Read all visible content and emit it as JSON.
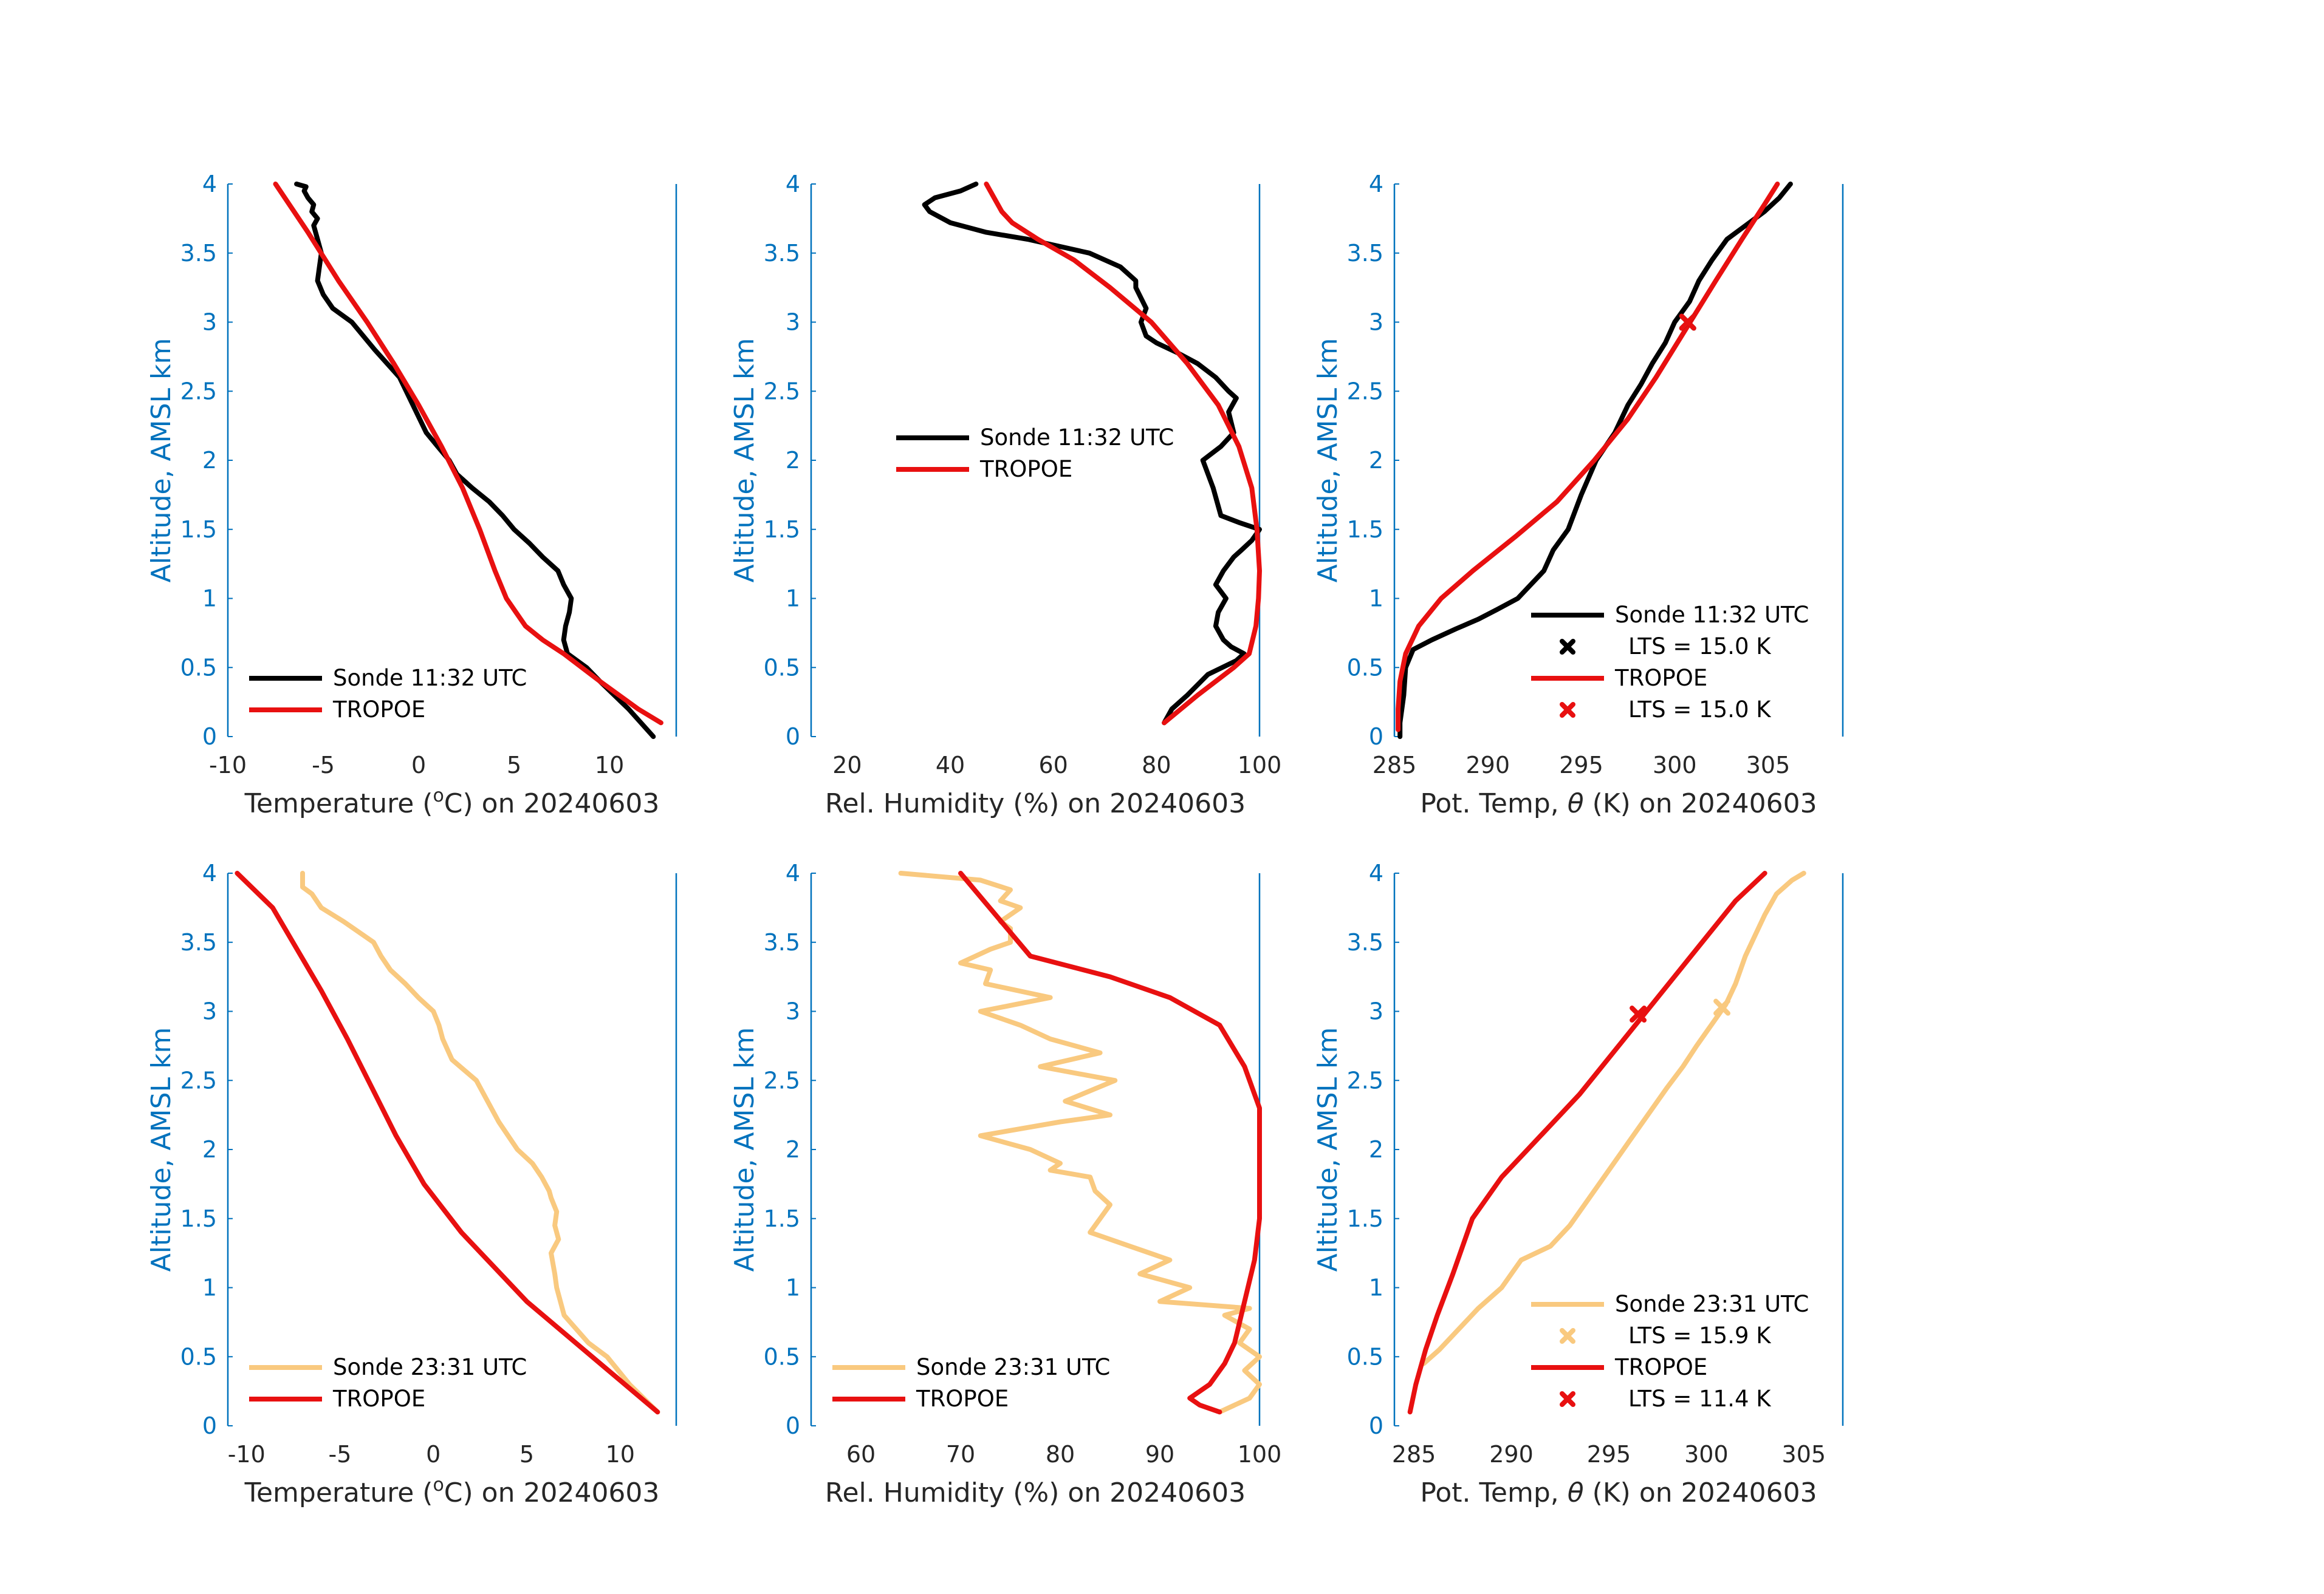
{
  "colors": {
    "sonde_am": "#000000",
    "sonde_pm": "#F9C97F",
    "tropoe": "#E81010",
    "axis": "#0072BD",
    "text": "#262626"
  },
  "chart_data": [
    {
      "type": "line",
      "id": "temp-am",
      "xlabel": "Temperature (",
      "xlabel_sup": "o",
      "xlabel_after": "C) on 20240603",
      "ylabel": "Altitude, AMSL km",
      "xlim": [
        -10,
        13.5
      ],
      "ylim": [
        0,
        4
      ],
      "xticks": [
        -10,
        -5,
        0,
        5,
        10
      ],
      "xtick_labels": [
        "-10",
        "-5",
        "0",
        "5",
        "10"
      ],
      "yticks": [
        0,
        0.5,
        1,
        1.5,
        2,
        2.5,
        3,
        3.5,
        4
      ],
      "ytick_labels": [
        "0",
        "0.5",
        "1",
        "1.5",
        "2",
        "2.5",
        "3",
        "3.5",
        "4"
      ],
      "legend": {
        "loc": "lower-left"
      },
      "series": [
        {
          "name": "Sonde 11:32 UTC",
          "color": "sonde_am",
          "x": [
            12.3,
            11.0,
            9.5,
            8.8,
            7.8,
            7.6,
            7.7,
            7.9,
            8.0,
            7.6,
            7.3,
            6.5,
            5.8,
            5.0,
            4.4,
            3.7,
            2.8,
            2.0,
            1.6,
            1.0,
            0.4,
            -0.3,
            -1.0,
            -2.3,
            -3.5,
            -4.5,
            -5.0,
            -5.3,
            -5.2,
            -5.1,
            -5.3,
            -5.5,
            -5.3,
            -5.6,
            -5.5,
            -5.8,
            -6.0,
            -5.9,
            -6.4
          ],
          "y": [
            0.0,
            0.2,
            0.4,
            0.5,
            0.6,
            0.7,
            0.8,
            0.9,
            1.0,
            1.1,
            1.2,
            1.3,
            1.4,
            1.5,
            1.6,
            1.7,
            1.8,
            1.9,
            2.0,
            2.1,
            2.2,
            2.4,
            2.6,
            2.8,
            3.0,
            3.1,
            3.2,
            3.3,
            3.4,
            3.5,
            3.6,
            3.7,
            3.75,
            3.8,
            3.85,
            3.9,
            3.95,
            3.98,
            4.0
          ]
        },
        {
          "name": "TROPOE",
          "color": "tropoe",
          "x": [
            12.7,
            11.5,
            9.5,
            7.6,
            6.5,
            5.6,
            5.1,
            4.6,
            4.0,
            3.2,
            2.3,
            1.2,
            0.0,
            -1.3,
            -2.7,
            -4.2,
            -5.8,
            -7.5
          ],
          "y": [
            0.1,
            0.2,
            0.4,
            0.6,
            0.7,
            0.8,
            0.9,
            1.0,
            1.2,
            1.5,
            1.8,
            2.1,
            2.4,
            2.7,
            3.0,
            3.3,
            3.65,
            4.0
          ]
        }
      ]
    },
    {
      "type": "line",
      "id": "rh-am",
      "xlabel": "Rel. Humidity (%) on 20240603",
      "ylabel": "Altitude, AMSL km",
      "xlim": [
        13,
        100
      ],
      "ylim": [
        0,
        4
      ],
      "xticks": [
        20,
        40,
        60,
        80,
        100
      ],
      "xtick_labels": [
        "20",
        "40",
        "60",
        "80",
        "100"
      ],
      "yticks": [
        0,
        0.5,
        1,
        1.5,
        2,
        2.5,
        3,
        3.5,
        4
      ],
      "ytick_labels": [
        "0",
        "0.5",
        "1",
        "1.5",
        "2",
        "2.5",
        "3",
        "3.5",
        "4"
      ],
      "legend": {
        "loc": "middle-left"
      },
      "series": [
        {
          "name": "Sonde 11:32 UTC",
          "color": "sonde_am",
          "x": [
            81.5,
            83.0,
            86.0,
            90.0,
            95.5,
            97.0,
            94.5,
            93.0,
            91.5,
            92.0,
            93.5,
            91.5,
            93.0,
            95.0,
            96.5,
            98.5,
            100.0,
            96.0,
            92.5,
            91.0,
            89.0,
            92.5,
            95.0,
            94.0,
            95.5,
            94.0,
            91.5,
            88.0,
            84.0,
            80.0,
            78.0,
            77.0,
            78.0,
            76.0,
            76.0,
            73.0,
            67.0,
            55.0,
            47.0,
            40.0,
            36.0,
            35.0,
            37.0,
            42.0,
            45.0
          ],
          "y": [
            0.1,
            0.2,
            0.3,
            0.45,
            0.55,
            0.6,
            0.65,
            0.7,
            0.8,
            0.9,
            1.0,
            1.1,
            1.2,
            1.3,
            1.35,
            1.42,
            1.5,
            1.55,
            1.6,
            1.8,
            2.0,
            2.1,
            2.2,
            2.35,
            2.45,
            2.5,
            2.6,
            2.7,
            2.78,
            2.85,
            2.9,
            3.0,
            3.1,
            3.25,
            3.3,
            3.4,
            3.5,
            3.6,
            3.65,
            3.72,
            3.8,
            3.85,
            3.9,
            3.95,
            4.0
          ]
        },
        {
          "name": "TROPOE",
          "color": "tropoe",
          "x": [
            81.5,
            88.0,
            95.0,
            98.0,
            99.3,
            99.8,
            100.0,
            99.5,
            98.5,
            96.0,
            92.0,
            86.0,
            79.0,
            71.0,
            64.0,
            57.0,
            52.0,
            50.0,
            47.0
          ],
          "y": [
            0.1,
            0.3,
            0.5,
            0.6,
            0.8,
            1.0,
            1.2,
            1.5,
            1.8,
            2.1,
            2.4,
            2.7,
            3.0,
            3.25,
            3.45,
            3.6,
            3.72,
            3.8,
            4.0
          ]
        }
      ]
    },
    {
      "type": "line",
      "id": "theta-am",
      "xlabel": "Pot. Temp, ",
      "xlabel_theta": "θ",
      "xlabel_after": " (K) on 20240603",
      "ylabel": "Altitude, AMSL km",
      "xlim": [
        285,
        309
      ],
      "ylim": [
        0,
        4
      ],
      "xticks": [
        285,
        290,
        295,
        300,
        305
      ],
      "xtick_labels": [
        "285",
        "290",
        "295",
        "300",
        "305"
      ],
      "yticks": [
        0,
        0.5,
        1,
        1.5,
        2,
        2.5,
        3,
        3.5,
        4
      ],
      "ytick_labels": [
        "0",
        "0.5",
        "1",
        "1.5",
        "2",
        "2.5",
        "3",
        "3.5",
        "4"
      ],
      "legend": {
        "loc": "lower-right"
      },
      "legend_entries": [
        {
          "label": "Sonde 11:32 UTC",
          "marker": "line",
          "color": "sonde_am"
        },
        {
          "label": "LTS = 15.0 K",
          "marker": "x",
          "color": "sonde_am"
        },
        {
          "label": "TROPOE",
          "marker": "line",
          "color": "tropoe"
        },
        {
          "label": "LTS = 15.0 K",
          "marker": "x",
          "color": "tropoe"
        }
      ],
      "series": [
        {
          "name": "Sonde 11:32 UTC",
          "color": "sonde_am",
          "x": [
            285.3,
            285.3,
            285.5,
            285.6,
            286.0,
            287.0,
            288.3,
            289.5,
            290.5,
            291.6,
            292.3,
            293.0,
            293.5,
            294.3,
            295.0,
            295.8,
            296.8,
            297.5,
            298.2,
            298.8,
            299.5,
            300.0,
            300.8,
            301.3,
            302.0,
            302.8,
            303.8,
            304.8,
            305.6,
            306.2
          ],
          "y": [
            0.0,
            0.1,
            0.3,
            0.5,
            0.63,
            0.7,
            0.78,
            0.85,
            0.92,
            1.0,
            1.1,
            1.2,
            1.35,
            1.5,
            1.75,
            2.0,
            2.2,
            2.4,
            2.55,
            2.7,
            2.85,
            3.0,
            3.15,
            3.3,
            3.45,
            3.6,
            3.7,
            3.8,
            3.9,
            4.0
          ]
        },
        {
          "name": "TROPOE",
          "color": "tropoe",
          "x": [
            285.2,
            285.2,
            285.3,
            285.6,
            286.3,
            287.5,
            289.2,
            291.5,
            293.7,
            295.7,
            297.5,
            299.0,
            300.6,
            302.2,
            303.6,
            304.8,
            305.5
          ],
          "y": [
            0.05,
            0.2,
            0.4,
            0.6,
            0.8,
            1.0,
            1.2,
            1.45,
            1.7,
            2.0,
            2.3,
            2.6,
            2.95,
            3.3,
            3.6,
            3.85,
            4.0
          ]
        }
      ],
      "markers": [
        {
          "x": 300.7,
          "y": 3.0,
          "color": "sonde_am"
        },
        {
          "x": 300.7,
          "y": 3.0,
          "color": "tropoe"
        }
      ]
    },
    {
      "type": "line",
      "id": "temp-pm",
      "xlabel": "Temperature (",
      "xlabel_sup": "o",
      "xlabel_after": "C) on 20240603",
      "ylabel": "Altitude, AMSL km",
      "xlim": [
        -11,
        13
      ],
      "ylim": [
        0,
        4
      ],
      "xticks": [
        -10,
        -5,
        0,
        5,
        10
      ],
      "xtick_labels": [
        "-10",
        "-5",
        "0",
        "5",
        "10"
      ],
      "yticks": [
        0,
        0.5,
        1,
        1.5,
        2,
        2.5,
        3,
        3.5,
        4
      ],
      "ytick_labels": [
        "0",
        "0.5",
        "1",
        "1.5",
        "2",
        "2.5",
        "3",
        "3.5",
        "4"
      ],
      "legend": {
        "loc": "lower-left"
      },
      "series": [
        {
          "name": "Sonde 23:31 UTC",
          "color": "sonde_pm",
          "x": [
            12.0,
            10.5,
            9.3,
            8.3,
            7.0,
            6.6,
            6.5,
            6.3,
            6.7,
            6.5,
            6.6,
            6.3,
            6.2,
            5.8,
            5.3,
            4.5,
            3.5,
            2.9,
            2.3,
            1.0,
            0.5,
            0.3,
            0.0,
            -0.8,
            -1.5,
            -2.3,
            -2.8,
            -3.2,
            -4.8,
            -6.0,
            -6.5,
            -7.0,
            -7.0
          ],
          "y": [
            0.1,
            0.3,
            0.5,
            0.6,
            0.8,
            1.0,
            1.1,
            1.25,
            1.35,
            1.45,
            1.55,
            1.65,
            1.7,
            1.8,
            1.9,
            2.0,
            2.2,
            2.35,
            2.5,
            2.65,
            2.8,
            2.9,
            3.0,
            3.1,
            3.2,
            3.3,
            3.4,
            3.5,
            3.65,
            3.75,
            3.85,
            3.9,
            4.0
          ]
        },
        {
          "name": "TROPOE",
          "color": "tropoe",
          "x": [
            12.0,
            8.5,
            5.0,
            1.5,
            -0.5,
            -2.0,
            -3.3,
            -4.6,
            -6.0,
            -7.3,
            -8.6,
            -10.5
          ],
          "y": [
            0.1,
            0.5,
            0.9,
            1.4,
            1.75,
            2.1,
            2.45,
            2.8,
            3.15,
            3.45,
            3.75,
            4.0
          ]
        }
      ]
    },
    {
      "type": "line",
      "id": "rh-pm",
      "xlabel": "Rel. Humidity (%) on 20240603",
      "ylabel": "Altitude, AMSL km",
      "xlim": [
        55,
        100
      ],
      "ylim": [
        0,
        4
      ],
      "xticks": [
        60,
        70,
        80,
        90,
        100
      ],
      "xtick_labels": [
        "60",
        "70",
        "80",
        "90",
        "100"
      ],
      "yticks": [
        0,
        0.5,
        1,
        1.5,
        2,
        2.5,
        3,
        3.5,
        4
      ],
      "ytick_labels": [
        "0",
        "0.5",
        "1",
        "1.5",
        "2",
        "2.5",
        "3",
        "3.5",
        "4"
      ],
      "legend": {
        "loc": "lower-left"
      },
      "series": [
        {
          "name": "Sonde 23:31 UTC",
          "color": "sonde_pm",
          "x": [
            96.0,
            99.0,
            100.0,
            98.5,
            100.0,
            98.0,
            99.0,
            96.5,
            99.0,
            90.0,
            93.0,
            88.0,
            91.0,
            87.0,
            83.0,
            84.0,
            85.0,
            83.5,
            83.0,
            79.0,
            80.0,
            77.0,
            72.0,
            80.0,
            85.0,
            80.5,
            85.5,
            78.0,
            84.0,
            79.0,
            76.0,
            72.0,
            79.0,
            72.5,
            73.0,
            70.0,
            73.0,
            75.0,
            75.0,
            74.0,
            76.0,
            74.0,
            75.0,
            72.0,
            64.0
          ],
          "y": [
            0.1,
            0.2,
            0.3,
            0.4,
            0.5,
            0.6,
            0.7,
            0.8,
            0.85,
            0.9,
            1.0,
            1.1,
            1.2,
            1.3,
            1.4,
            1.5,
            1.6,
            1.7,
            1.8,
            1.85,
            1.9,
            2.0,
            2.1,
            2.2,
            2.25,
            2.35,
            2.5,
            2.6,
            2.7,
            2.8,
            2.9,
            3.0,
            3.1,
            3.2,
            3.3,
            3.35,
            3.45,
            3.5,
            3.6,
            3.65,
            3.75,
            3.8,
            3.88,
            3.95,
            4.0
          ]
        },
        {
          "name": "TROPOE",
          "color": "tropoe",
          "x": [
            96.0,
            94.0,
            93.0,
            95.0,
            96.5,
            97.5,
            98.0,
            98.5,
            99.5,
            100.0,
            100.0,
            100.0,
            98.5,
            96.0,
            91.0,
            85.0,
            77.0,
            70.0
          ],
          "y": [
            0.1,
            0.15,
            0.2,
            0.3,
            0.45,
            0.6,
            0.75,
            0.9,
            1.2,
            1.5,
            2.0,
            2.3,
            2.6,
            2.9,
            3.1,
            3.25,
            3.4,
            4.0
          ]
        }
      ]
    },
    {
      "type": "line",
      "id": "theta-pm",
      "xlabel": "Pot. Temp, ",
      "xlabel_theta": "θ",
      "xlabel_after": " (K) on 20240603",
      "ylabel": "Altitude, AMSL km",
      "xlim": [
        284,
        307
      ],
      "ylim": [
        0,
        4
      ],
      "xticks": [
        285,
        290,
        295,
        300,
        305
      ],
      "xtick_labels": [
        "285",
        "290",
        "295",
        "300",
        "305"
      ],
      "yticks": [
        0,
        0.5,
        1,
        1.5,
        2,
        2.5,
        3,
        3.5,
        4
      ],
      "ytick_labels": [
        "0",
        "0.5",
        "1",
        "1.5",
        "2",
        "2.5",
        "3",
        "3.5",
        "4"
      ],
      "legend": {
        "loc": "lower-right"
      },
      "legend_entries": [
        {
          "label": "Sonde 23:31 UTC",
          "marker": "line",
          "color": "sonde_pm"
        },
        {
          "label": "LTS = 15.9 K",
          "marker": "x",
          "color": "sonde_pm"
        },
        {
          "label": "TROPOE",
          "marker": "line",
          "color": "tropoe"
        },
        {
          "label": "LTS = 11.4 K",
          "marker": "x",
          "color": "tropoe"
        }
      ],
      "series": [
        {
          "name": "Sonde 23:31 UTC",
          "color": "sonde_pm",
          "x": [
            285.5,
            286.3,
            287.3,
            288.3,
            289.5,
            290.5,
            292.0,
            293.0,
            294.0,
            295.0,
            296.0,
            297.0,
            298.0,
            298.8,
            299.5,
            300.5,
            301.0,
            301.5,
            302.0,
            302.5,
            303.0,
            303.6,
            304.4,
            305.0
          ],
          "y": [
            0.45,
            0.55,
            0.7,
            0.85,
            1.0,
            1.2,
            1.3,
            1.45,
            1.65,
            1.85,
            2.05,
            2.25,
            2.45,
            2.6,
            2.75,
            2.95,
            3.05,
            3.2,
            3.4,
            3.55,
            3.7,
            3.85,
            3.95,
            4.0
          ]
        },
        {
          "name": "TROPOE",
          "color": "tropoe",
          "x": [
            284.8,
            285.1,
            285.6,
            286.2,
            287.0,
            288.0,
            289.5,
            291.5,
            293.5,
            295.5,
            297.5,
            299.5,
            301.5,
            303.0
          ],
          "y": [
            0.1,
            0.3,
            0.55,
            0.8,
            1.1,
            1.5,
            1.8,
            2.1,
            2.4,
            2.75,
            3.1,
            3.45,
            3.8,
            4.0
          ]
        }
      ],
      "markers": [
        {
          "x": 300.8,
          "y": 3.03,
          "color": "sonde_pm"
        },
        {
          "x": 296.5,
          "y": 2.98,
          "color": "tropoe"
        }
      ]
    }
  ]
}
